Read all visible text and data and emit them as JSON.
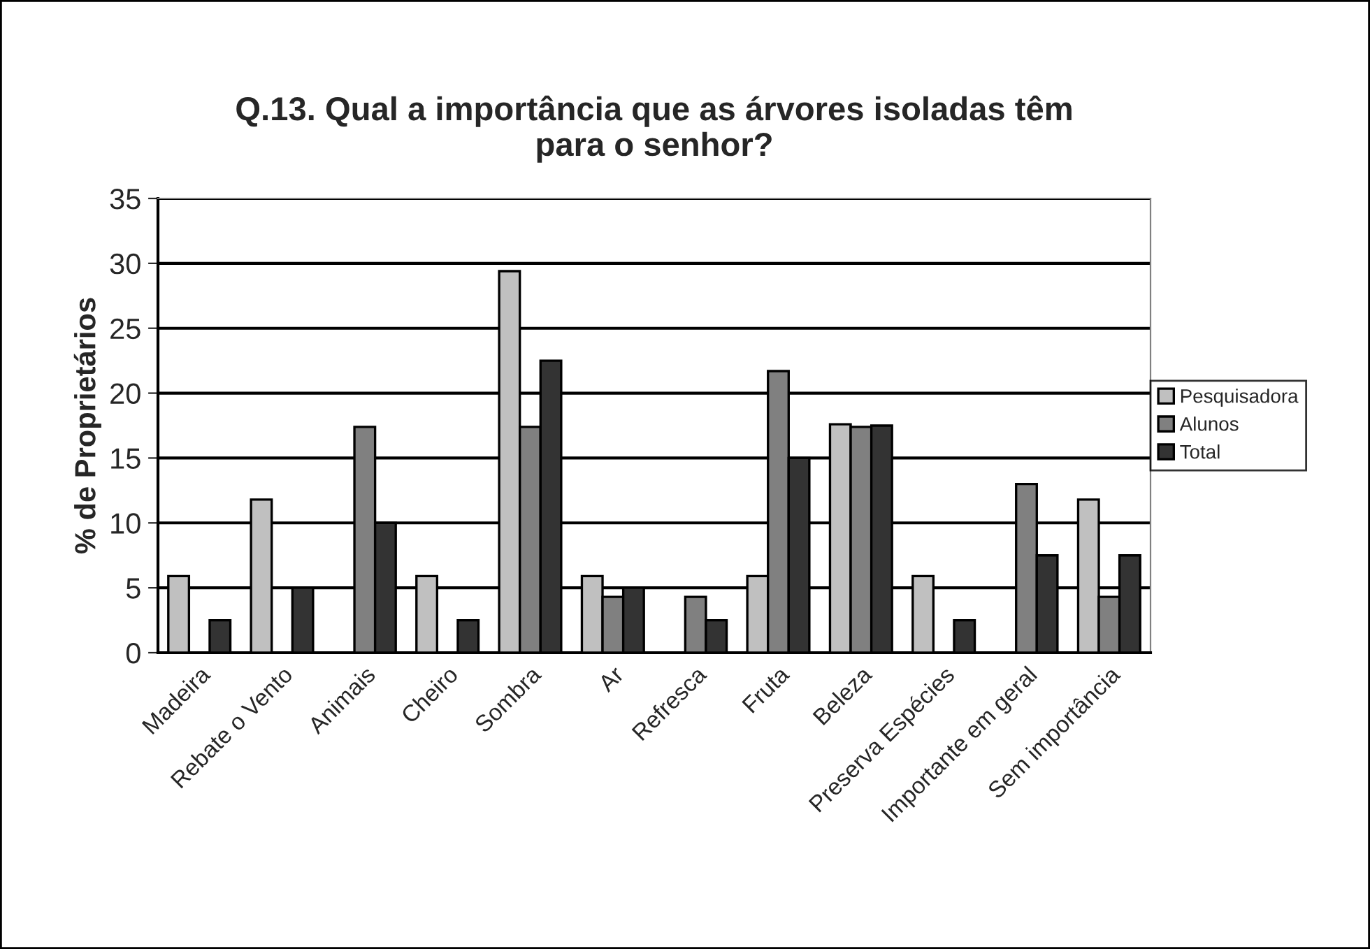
{
  "chart_data": {
    "type": "bar",
    "title": "Q.13. Qual a importância que as árvores isoladas têm\npara o senhor?",
    "ylabel": "% de Proprietários",
    "categories": [
      "Madeira",
      "Rebate o Vento",
      "Animais",
      "Cheiro",
      "Sombra",
      "Ar",
      "Refresca",
      "Fruta",
      "Beleza",
      "Preserva Espécies",
      "Importante em geral",
      "Sem importância"
    ],
    "series": [
      {
        "name": "Pesquisadora",
        "color": "#c0c0c0",
        "values": [
          5.9,
          11.8,
          null,
          5.9,
          29.4,
          5.9,
          null,
          5.9,
          17.6,
          5.9,
          null,
          11.8
        ]
      },
      {
        "name": "Alunos",
        "color": "#808080",
        "values": [
          null,
          null,
          17.4,
          null,
          17.4,
          4.3,
          4.3,
          21.7,
          17.4,
          null,
          13.0,
          4.3
        ]
      },
      {
        "name": "Total",
        "color": "#333333",
        "values": [
          2.5,
          5,
          10,
          2.5,
          22.5,
          5,
          2.5,
          15,
          17.5,
          2.5,
          7.5,
          7.5
        ]
      }
    ],
    "ylim": [
      0,
      35
    ],
    "yticks": [
      0,
      5,
      10,
      15,
      20,
      25,
      30,
      35
    ],
    "grid": "y",
    "legend": "right"
  }
}
